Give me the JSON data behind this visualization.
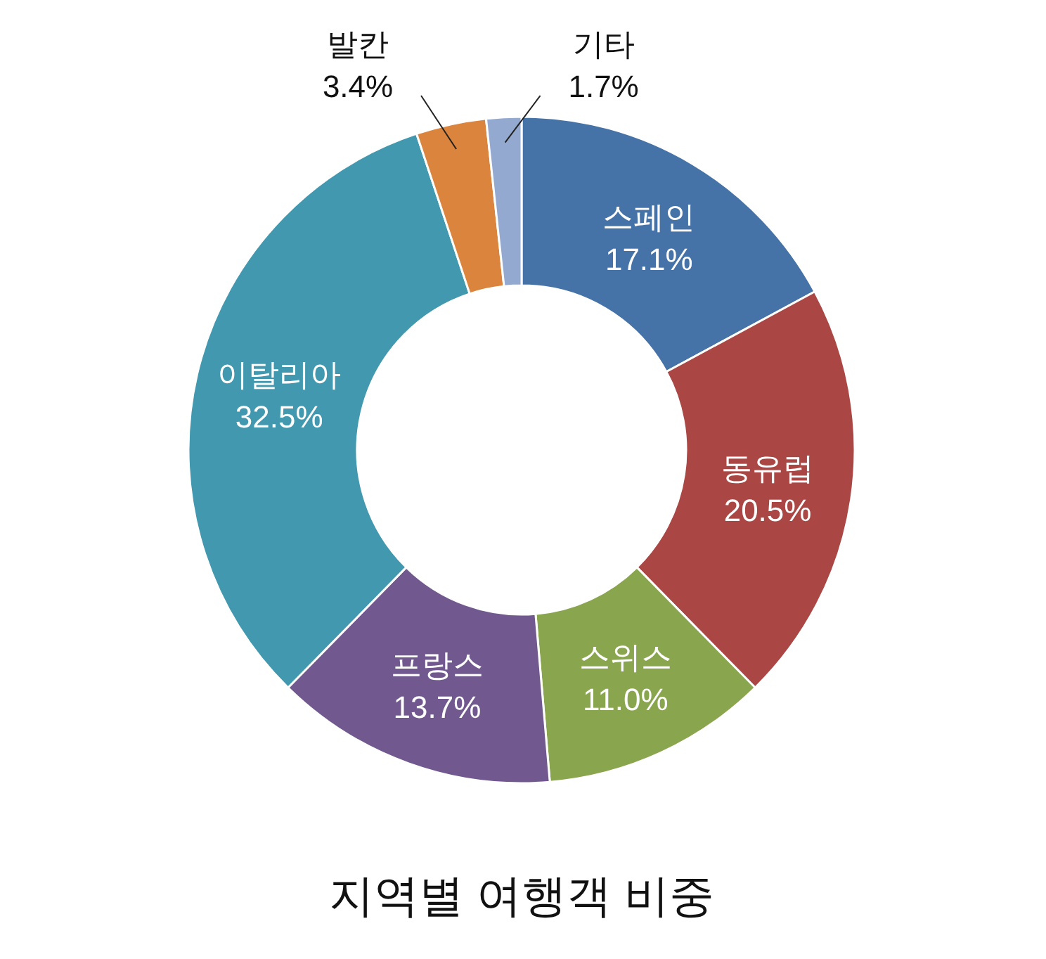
{
  "chart_data": {
    "type": "donut",
    "title": "지역별 여행객 비중",
    "categories": [
      "스페인",
      "동유럽",
      "스위스",
      "프랑스",
      "이탈리아",
      "발칸",
      "기타"
    ],
    "values": [
      17.1,
      20.5,
      11.0,
      13.7,
      32.5,
      3.4,
      1.7
    ],
    "value_labels": [
      "17.1%",
      "20.5%",
      "11.0%",
      "13.7%",
      "32.5%",
      "3.4%",
      "1.7%"
    ],
    "colors": [
      "#4572a7",
      "#aa4643",
      "#89a54e",
      "#71588f",
      "#4198af",
      "#db843d",
      "#93a9cf"
    ]
  }
}
